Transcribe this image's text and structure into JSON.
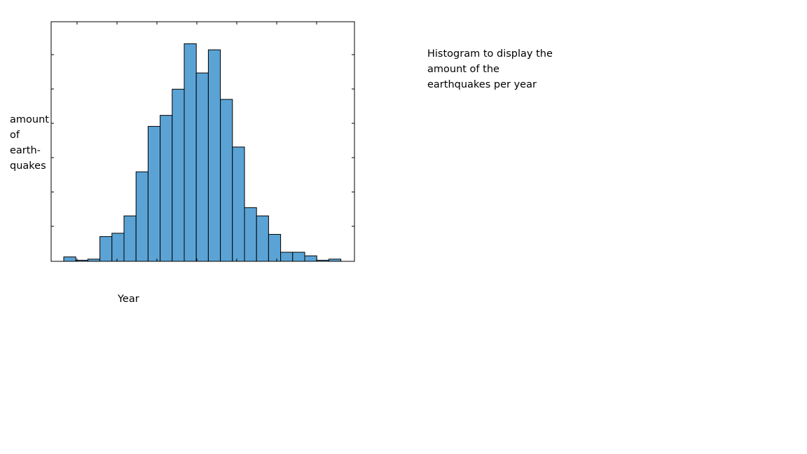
{
  "chart_data": {
    "type": "bar",
    "title": "",
    "xlabel": "Year",
    "ylabel_lines": [
      "amount",
      "of",
      "earth-",
      "quakes"
    ],
    "annotation_lines": [
      "Histogram to display the",
      "amount of the",
      "earthquakes per year"
    ],
    "values": [
      1.6,
      0.4,
      0.8,
      9.0,
      10.2,
      16.5,
      32.5,
      49.0,
      53.0,
      62.5,
      79.0,
      68.4,
      76.8,
      58.8,
      41.5,
      19.5,
      16.5,
      9.8,
      3.3,
      3.3,
      2.0,
      0.4,
      0.8
    ],
    "ylim": [
      0,
      87
    ],
    "xticks_count": 7,
    "yticks_count": 6,
    "grid": false,
    "bar_color": "#5ba3d5",
    "bar_edge_color": "#000000"
  }
}
